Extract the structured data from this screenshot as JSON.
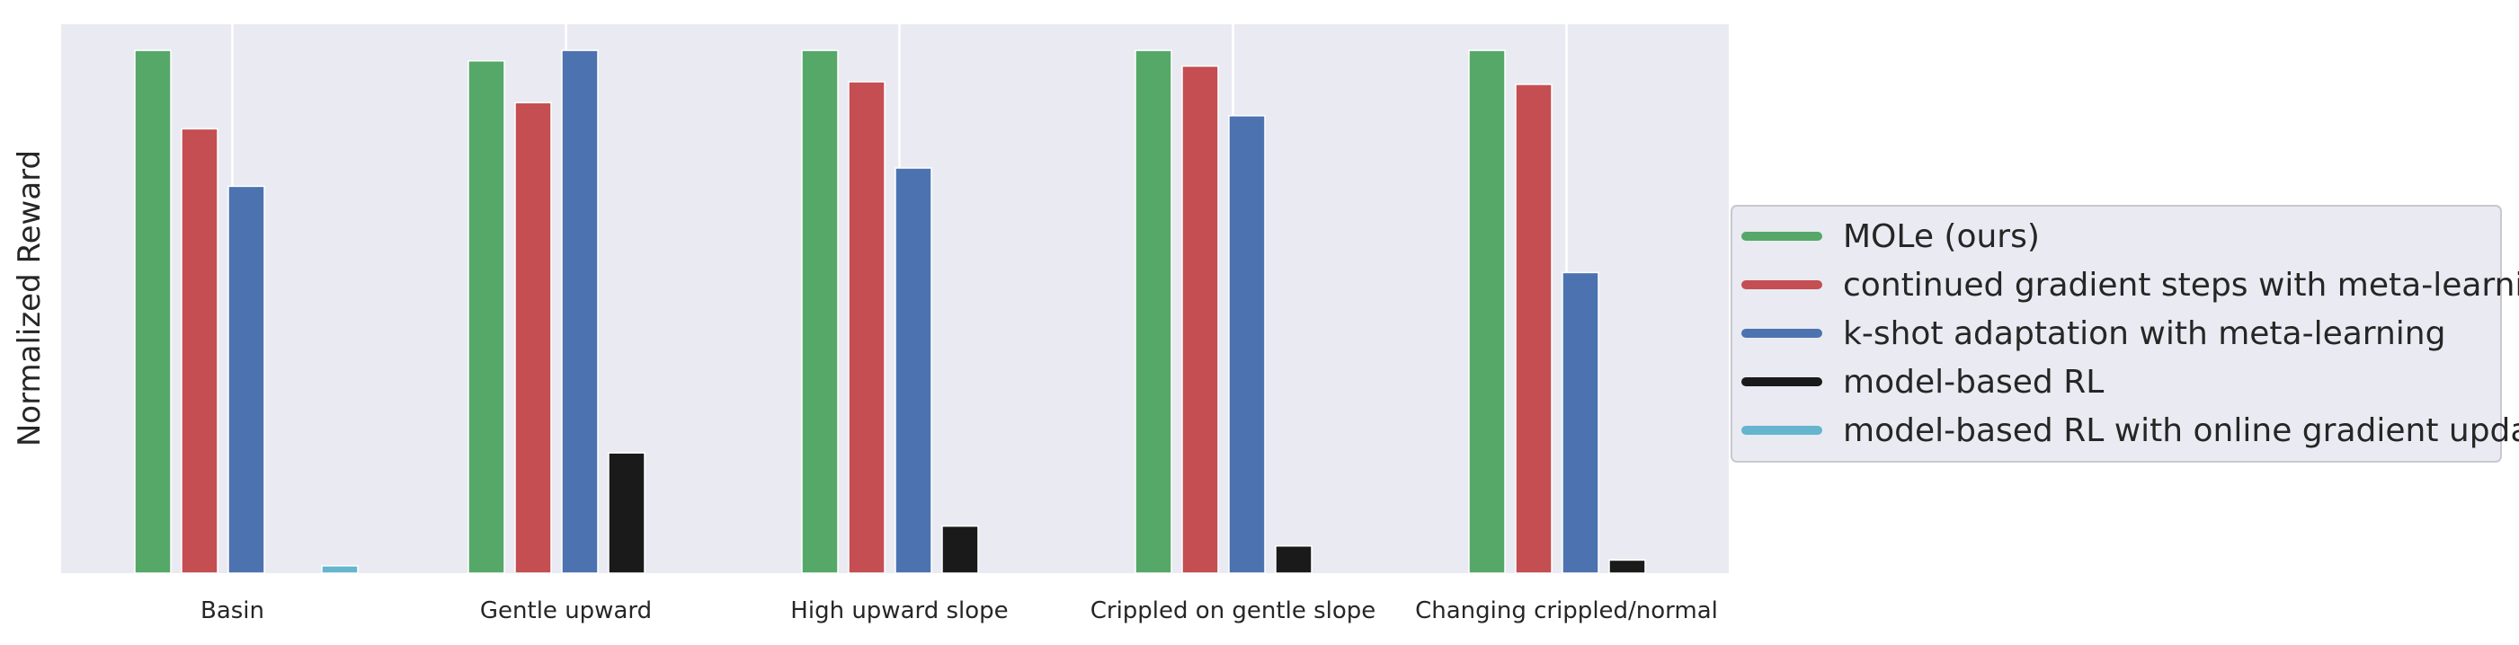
{
  "chart_data": {
    "type": "bar",
    "ylabel": "Normalized Reward",
    "ylim": [
      0,
      1.05
    ],
    "categories": [
      "Basin",
      "Gentle upward",
      "High upward slope",
      "Crippled on gentle slope",
      "Changing crippled/normal"
    ],
    "series": [
      {
        "name": "MOLe (ours)",
        "color": "#55a868",
        "values": [
          1.0,
          0.98,
          1.0,
          1.0,
          1.0
        ]
      },
      {
        "name": "continued gradient steps with meta-learning",
        "color": "#c44e52",
        "values": [
          0.85,
          0.9,
          0.94,
          0.97,
          0.935
        ]
      },
      {
        "name": "k-shot adaptation with meta-learning",
        "color": "#4c72b0",
        "values": [
          0.74,
          1.0,
          0.775,
          0.875,
          0.575
        ]
      },
      {
        "name": "model-based RL",
        "color": "#1a1a1a",
        "values": [
          0.0,
          0.23,
          0.09,
          0.052,
          0.025
        ]
      },
      {
        "name": "model-based RL with online gradient updates",
        "color": "#64b5cd",
        "values": [
          0.014,
          0.0,
          0.0,
          0.0,
          0.0
        ]
      }
    ],
    "grid": "x-only",
    "legend": "center-right, outside plot"
  }
}
